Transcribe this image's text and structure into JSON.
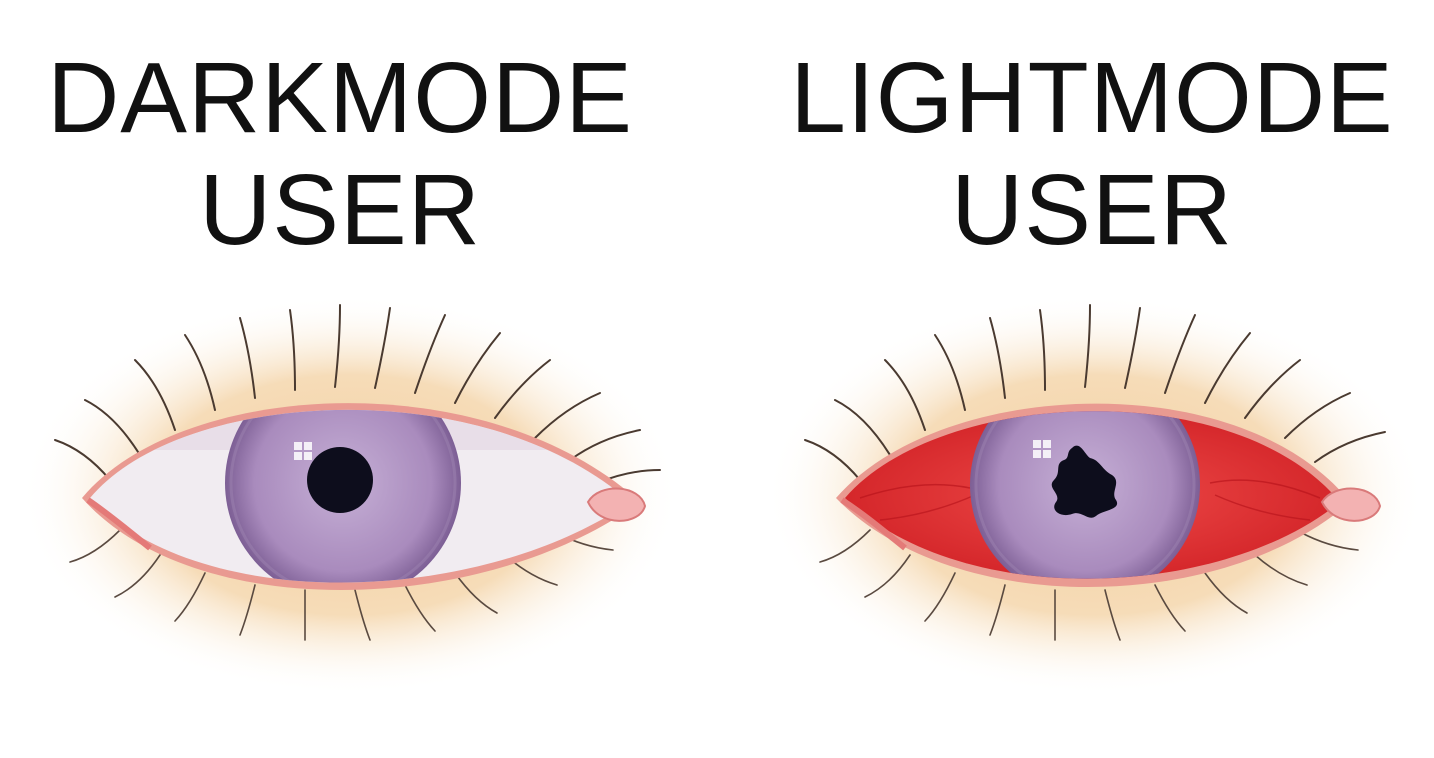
{
  "panels": [
    {
      "title_line1": "DARKMODE",
      "title_line2": "USER",
      "eye": {
        "sclera_color": "#f3eef2",
        "iris_color": "#b69ac6",
        "pupil_shape": "round",
        "skin_color": "#f4d9b2"
      }
    },
    {
      "title_line1": "LIGHTMODE",
      "title_line2": "USER",
      "eye": {
        "sclera_color": "#e12b2e",
        "iris_color": "#b69ac6",
        "pupil_shape": "irregular",
        "skin_color": "#f4d9b2"
      }
    }
  ]
}
